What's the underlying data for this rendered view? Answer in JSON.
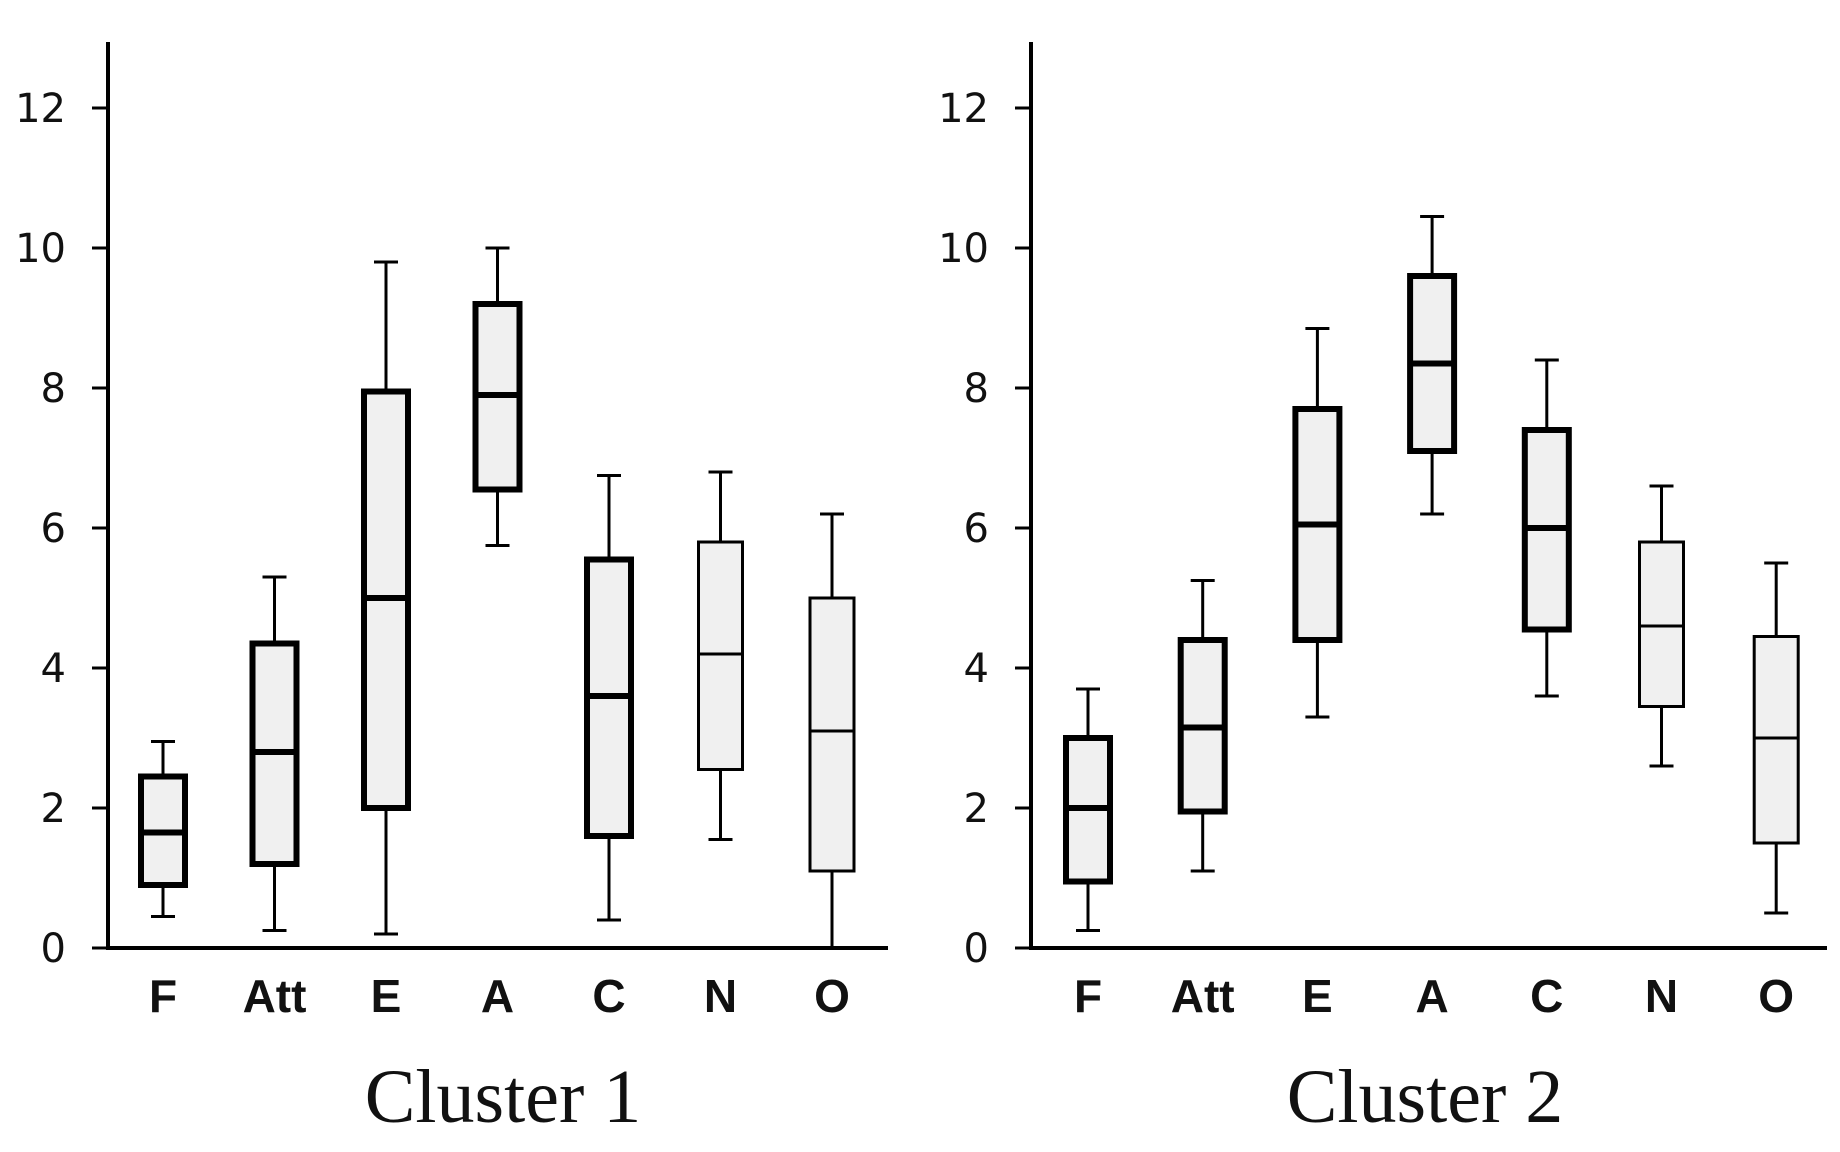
{
  "chart_data": [
    {
      "type": "boxplot",
      "title": "Cluster 1",
      "categories": [
        "F",
        "Att",
        "E",
        "A",
        "C",
        "N",
        "O"
      ],
      "y_ticks": [
        "0",
        "2",
        "4",
        "6",
        "8",
        "10",
        "12"
      ],
      "ylim": [
        0,
        13
      ],
      "boxes": [
        {
          "min": 0.45,
          "q1": 0.9,
          "median": 1.65,
          "q3": 2.45,
          "max": 2.95,
          "style": "thick"
        },
        {
          "min": 0.25,
          "q1": 1.2,
          "median": 2.8,
          "q3": 4.35,
          "max": 5.3,
          "style": "thick"
        },
        {
          "min": 0.2,
          "q1": 2.0,
          "median": 5.0,
          "q3": 7.95,
          "max": 9.8,
          "style": "thick"
        },
        {
          "min": 5.75,
          "q1": 6.55,
          "median": 7.9,
          "q3": 9.2,
          "max": 10.0,
          "style": "thick"
        },
        {
          "min": 0.4,
          "q1": 1.6,
          "median": 3.6,
          "q3": 5.55,
          "max": 6.75,
          "style": "thick"
        },
        {
          "min": 1.55,
          "q1": 2.55,
          "median": 4.2,
          "q3": 5.8,
          "max": 6.8,
          "style": "thin"
        },
        {
          "min": 0.0,
          "q1": 1.1,
          "median": 3.1,
          "q3": 5.0,
          "max": 6.2,
          "style": "thin"
        }
      ]
    },
    {
      "type": "boxplot",
      "title": "Cluster 2",
      "categories": [
        "F",
        "Att",
        "E",
        "A",
        "C",
        "N",
        "O"
      ],
      "y_ticks": [
        "0",
        "2",
        "4",
        "6",
        "8",
        "10",
        "12"
      ],
      "ylim": [
        0,
        13
      ],
      "boxes": [
        {
          "min": 0.25,
          "q1": 0.95,
          "median": 2.0,
          "q3": 3.0,
          "max": 3.7,
          "style": "thick"
        },
        {
          "min": 1.1,
          "q1": 1.95,
          "median": 3.15,
          "q3": 4.4,
          "max": 5.25,
          "style": "thick"
        },
        {
          "min": 3.3,
          "q1": 4.4,
          "median": 6.05,
          "q3": 7.7,
          "max": 8.85,
          "style": "thick"
        },
        {
          "min": 6.2,
          "q1": 7.1,
          "median": 8.35,
          "q3": 9.6,
          "max": 10.45,
          "style": "thick"
        },
        {
          "min": 3.6,
          "q1": 4.55,
          "median": 6.0,
          "q3": 7.4,
          "max": 8.4,
          "style": "thick"
        },
        {
          "min": 2.6,
          "q1": 3.45,
          "median": 4.6,
          "q3": 5.8,
          "max": 6.6,
          "style": "thin"
        },
        {
          "min": 0.5,
          "q1": 1.5,
          "median": 3.0,
          "q3": 4.45,
          "max": 5.5,
          "style": "thin"
        }
      ]
    }
  ],
  "colors": {
    "box_fill": "#f0f0f0",
    "stroke": "#000000"
  }
}
